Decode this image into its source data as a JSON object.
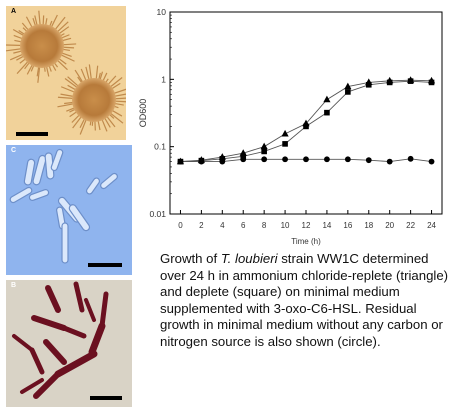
{
  "panels": [
    {
      "letter": "A"
    },
    {
      "letter": "C"
    },
    {
      "letter": "B"
    }
  ],
  "caption": {
    "prefix": "Growth of ",
    "species": "T. loubieri",
    "suffix": " strain WW1C determined over 24 h in ammonium chloride-replete (triangle) and deplete (square) on minimal medium supplemented with 3-oxo-C6-HSL. Residual growth in minimal medium without any carbon or nitrogen source is also shown (circle)."
  },
  "chart_data": {
    "type": "line",
    "xlabel": "Time (h)",
    "ylabel": "OD600",
    "xlim": [
      -1,
      25
    ],
    "xticks": [
      0,
      2,
      4,
      6,
      8,
      10,
      12,
      14,
      16,
      18,
      20,
      22,
      24
    ],
    "ylim": [
      0.01,
      10
    ],
    "yscale": "log",
    "yticks": [
      10,
      1,
      0.1,
      0.01
    ],
    "ytick_labels": [
      "10",
      "1",
      "0.1",
      "0.01"
    ],
    "grid": false,
    "series": [
      {
        "marker": "triangle",
        "x": [
          0,
          2,
          4,
          6,
          8,
          10,
          12,
          14,
          16,
          18,
          20,
          22,
          24
        ],
        "y": [
          0.06,
          0.063,
          0.07,
          0.08,
          0.1,
          0.155,
          0.22,
          0.5,
          0.78,
          0.9,
          0.95,
          0.97,
          0.95
        ]
      },
      {
        "marker": "square",
        "x": [
          0,
          2,
          4,
          6,
          8,
          10,
          12,
          14,
          16,
          18,
          20,
          22,
          24
        ],
        "y": [
          0.06,
          0.062,
          0.066,
          0.072,
          0.085,
          0.11,
          0.2,
          0.32,
          0.65,
          0.83,
          0.9,
          0.94,
          0.9
        ]
      },
      {
        "marker": "circle",
        "x": [
          0,
          2,
          4,
          6,
          8,
          10,
          12,
          14,
          16,
          18,
          20,
          22,
          24
        ],
        "y": [
          0.06,
          0.06,
          0.06,
          0.065,
          0.065,
          0.065,
          0.065,
          0.065,
          0.065,
          0.063,
          0.06,
          0.066,
          0.06
        ]
      }
    ]
  }
}
